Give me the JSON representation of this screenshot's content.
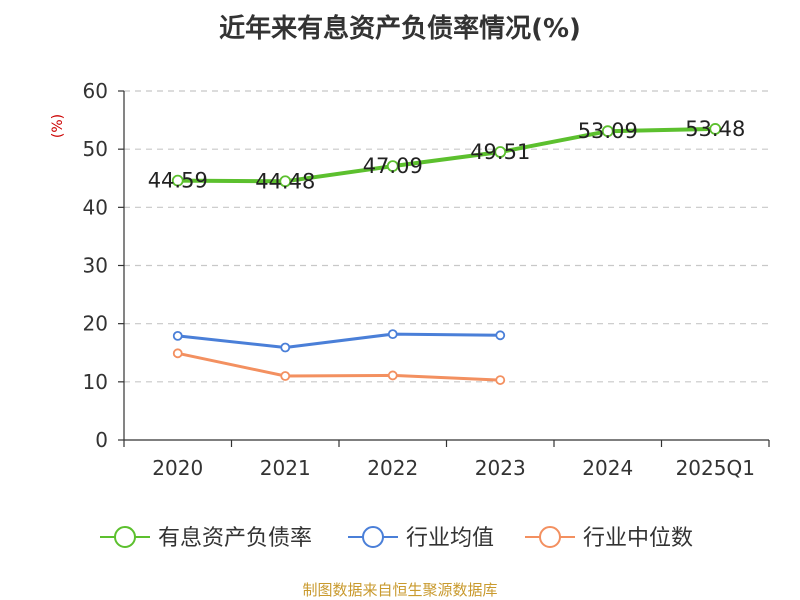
{
  "chart_data": {
    "type": "line",
    "title": "近年来有息资产负债率情况(%)",
    "ylabel": "(%)",
    "xlabel": "",
    "categories": [
      "2020",
      "2021",
      "2022",
      "2023",
      "2024",
      "2025Q1"
    ],
    "ylim": [
      0,
      60
    ],
    "yticks": [
      0,
      10,
      20,
      30,
      40,
      50,
      60
    ],
    "grid": true,
    "legend_position": "bottom",
    "series": [
      {
        "name": "有息资产负债率",
        "color": "#5cc02e",
        "values": [
          44.59,
          44.48,
          47.09,
          49.51,
          53.09,
          53.48
        ],
        "labels": [
          "44.59",
          "44.48",
          "47.09",
          "49.51",
          "53.09",
          "53.48"
        ]
      },
      {
        "name": "行业均值",
        "color": "#4a7fd8",
        "values": [
          17.9,
          15.9,
          18.2,
          18.0,
          null,
          null
        ]
      },
      {
        "name": "行业中位数",
        "color": "#f39060",
        "values": [
          14.9,
          11.0,
          11.1,
          10.3,
          null,
          null
        ]
      }
    ]
  },
  "footer": {
    "source": "制图数据来自恒生聚源数据库",
    "color": "#c99a2e"
  },
  "ylabel_color": "#cc0000"
}
